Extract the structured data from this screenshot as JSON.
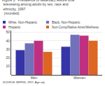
{
  "chart_data": {
    "type": "bar",
    "title": "Figure 3.  Prevalence of sedentary leisure time\n televewing among adults by sex, race and\n ethnicity, 1997\n  (rounded)",
    "categories": [
      "Men",
      "Women"
    ],
    "series": [
      {
        "name": "White, Non-Hispanic",
        "color": "#3535a8",
        "values": [
          29,
          33
        ]
      },
      {
        "name": "Black, Non-Hispanic",
        "color": "#7070bb",
        "values": [
          37,
          47
        ]
      },
      {
        "name": "Hispanic",
        "color": "#c03080",
        "values": [
          40,
          46
        ]
      },
      {
        "name": "Non-Comp/Native Amer/Wellness",
        "color": "#dd6622",
        "values": [
          27,
          40
        ]
      }
    ],
    "ylim": [
      0,
      52
    ],
    "yticks": [
      10,
      20,
      30,
      40,
      50
    ],
    "grid": true,
    "legend": "upper left",
    "annotations": [
      "SOURCE: BRFSS, 1997, Age adj."
    ]
  }
}
